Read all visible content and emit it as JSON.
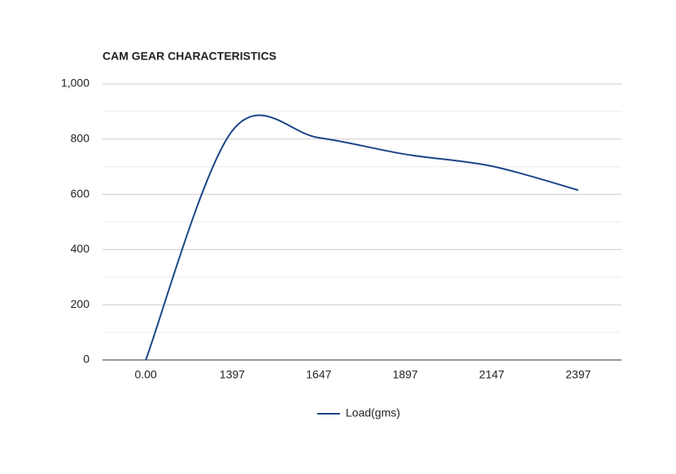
{
  "chart_data": {
    "type": "line",
    "title": "CAM GEAR CHARACTERISTICS",
    "categories": [
      "0.00",
      "1397",
      "1647",
      "1897",
      "2147",
      "2397"
    ],
    "series": [
      {
        "name": "Load(gms)",
        "color": "#1c4587",
        "values": [
          0,
          830,
          805,
          745,
          702,
          615
        ]
      }
    ],
    "ylim": [
      0,
      1000
    ],
    "yticks": [
      0,
      200,
      400,
      600,
      800,
      {
        "value": 1000,
        "label": "1,000"
      }
    ],
    "grid": true,
    "minor_grid": true,
    "smooth": true,
    "legend": "bottom"
  }
}
